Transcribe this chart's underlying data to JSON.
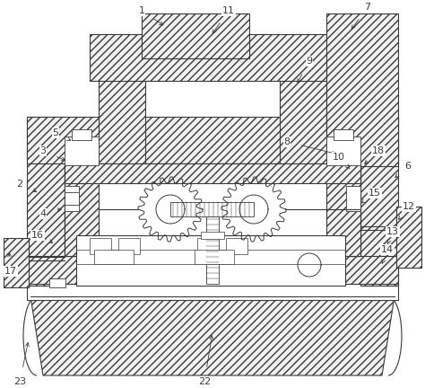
{
  "bg": "#ffffff",
  "lc": "#3a3a3a",
  "fw": 4.74,
  "fh": 4.32,
  "dpi": 100,
  "hatch": "////",
  "hfc": "#f0f0f0"
}
